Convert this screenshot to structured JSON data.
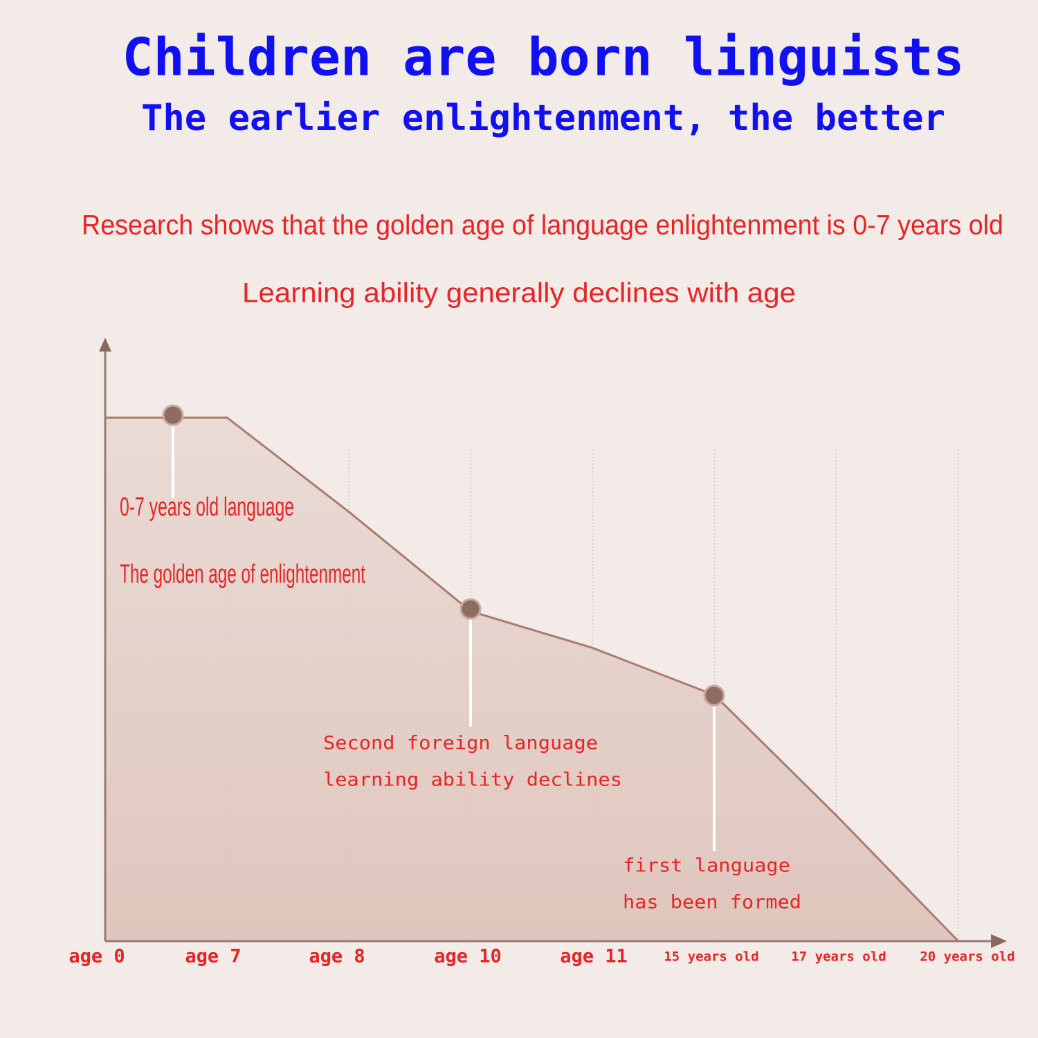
{
  "chart_data": {
    "type": "area",
    "title": "Children are born linguists",
    "subtitle": "The earlier enlightenment, the better",
    "annotations": [
      "Research shows that the golden age of language enlightenment is 0-7 years old",
      "Learning ability generally declines with age"
    ],
    "callouts": [
      [
        "0-7 years old language",
        "The golden age of enlightenment"
      ],
      [
        "Second foreign language",
        "learning ability declines"
      ],
      [
        "first language",
        "has been formed"
      ]
    ],
    "categories": [
      "age 0",
      "age 7",
      "age 8",
      "age 10",
      "age 11",
      "15 years old",
      "17 years old",
      "20 years old"
    ],
    "values": [
      100,
      100,
      82,
      63,
      56,
      47,
      24,
      0
    ],
    "color": "#a87c6c",
    "ylim": [
      0,
      115
    ],
    "grid": true
  }
}
